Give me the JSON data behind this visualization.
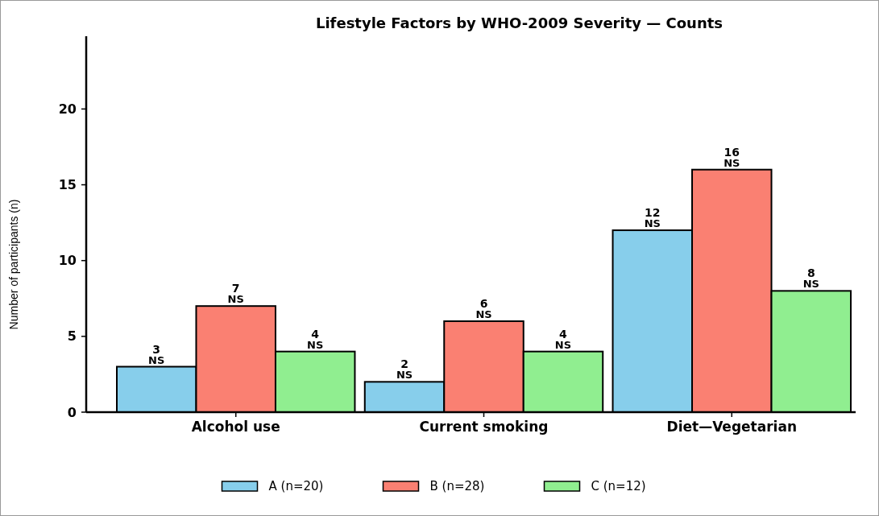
{
  "chart_data": {
    "type": "bar",
    "title": "Lifestyle Factors by WHO-2009 Severity — Counts",
    "ylabel": "Number of participants (n)",
    "categories": [
      "Alcohol use",
      "Current smoking",
      "Diet—Vegetarian"
    ],
    "series": [
      {
        "name": "A (n=20)",
        "color": "#87ceeb",
        "values": [
          3,
          2,
          12
        ]
      },
      {
        "name": "B (n=28)",
        "color": "#fa8072",
        "values": [
          7,
          6,
          16
        ]
      },
      {
        "name": "C (n=12)",
        "color": "#90ee90",
        "values": [
          4,
          4,
          8
        ]
      }
    ],
    "ylim": [
      0,
      24.8
    ],
    "yticks": [
      0,
      5,
      10,
      15,
      20
    ],
    "grid": false,
    "legend": "bottom",
    "data_labels": true,
    "annotations": [
      "NS",
      "NS",
      "NS",
      "NS",
      "NS",
      "NS",
      "NS",
      "NS",
      "NS"
    ]
  }
}
